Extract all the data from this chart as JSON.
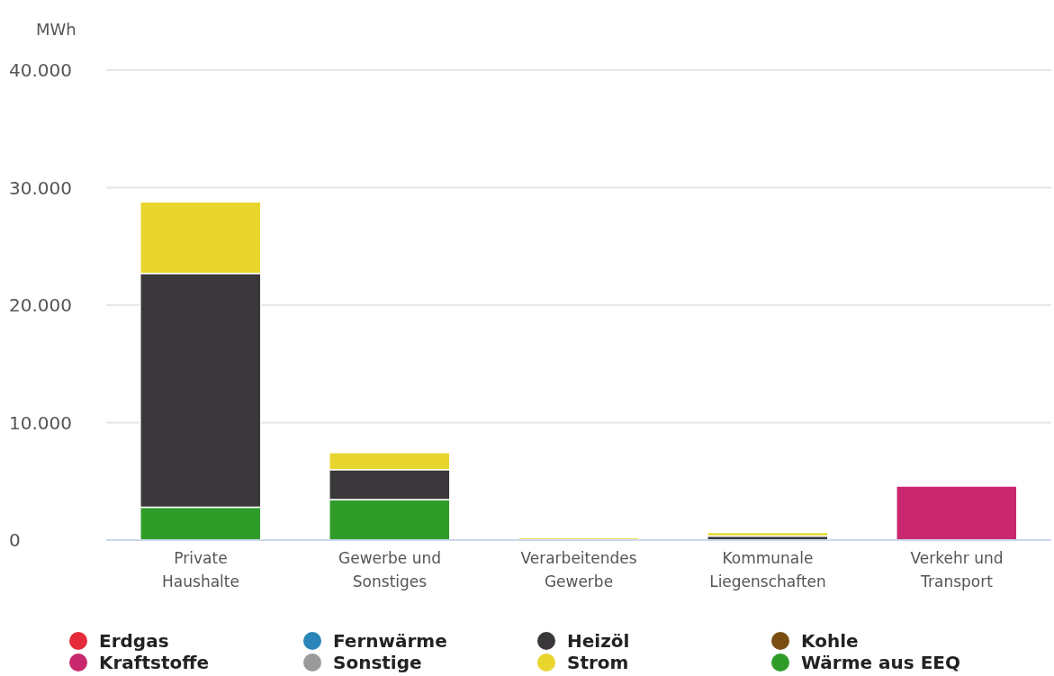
{
  "chart_data": {
    "type": "bar",
    "stacked": true,
    "ylabel": "MWh",
    "categories": [
      "Private Haushalte",
      "Gewerbe und Sonstiges",
      "Verarbeitendes Gewerbe",
      "Kommunale Liegenschaften",
      "Verkehr und Transport"
    ],
    "ylim": [
      0,
      40000
    ],
    "yticks": [
      {
        "value": 0,
        "label": "0"
      },
      {
        "value": 10000,
        "label": "10.000"
      },
      {
        "value": 20000,
        "label": "20.000"
      },
      {
        "value": 30000,
        "label": "30.000"
      },
      {
        "value": 40000,
        "label": "40.000"
      }
    ],
    "grid": "y",
    "legend": "bottom",
    "series": [
      {
        "name": "Wärme aus EEQ",
        "color": "#2f9c2a",
        "values": [
          2800,
          3450,
          0,
          0,
          0
        ]
      },
      {
        "name": "Heizöl",
        "color": "#3a383b",
        "values": [
          19900,
          2550,
          0,
          350,
          0
        ]
      },
      {
        "name": "Strom",
        "color": "#e8d62e",
        "values": [
          6100,
          1450,
          200,
          300,
          0
        ]
      },
      {
        "name": "Erdgas",
        "color": "#e52a3a",
        "values": [
          0,
          0,
          0,
          0,
          0
        ]
      },
      {
        "name": "Fernwärme",
        "color": "#2a85b8",
        "values": [
          0,
          0,
          0,
          0,
          0
        ]
      },
      {
        "name": "Kohle",
        "color": "#7a4e12",
        "values": [
          0,
          0,
          0,
          0,
          0
        ]
      },
      {
        "name": "Sonstige",
        "color": "#9a9a9a",
        "values": [
          0,
          0,
          0,
          0,
          0
        ]
      },
      {
        "name": "Kraftstoffe",
        "color": "#c9286f",
        "values": [
          0,
          0,
          0,
          0,
          4600
        ]
      }
    ]
  }
}
